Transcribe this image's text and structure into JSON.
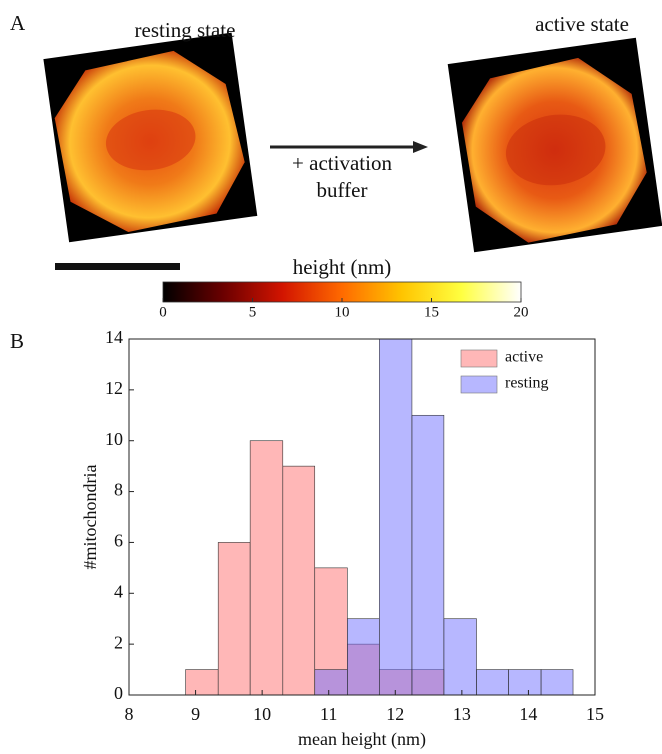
{
  "figure": {
    "panel_labels": [
      "A",
      "B"
    ],
    "image_labels": [
      "resting state",
      "active state"
    ],
    "arrow_label": [
      "+ activation",
      "buffer"
    ]
  },
  "chart_data": [
    {
      "type": "colorbar",
      "title": "height (nm)",
      "xlim": [
        0,
        20
      ],
      "xticks": [
        0,
        5,
        10,
        15,
        20
      ],
      "colors": [
        "#000000",
        "#6a0000",
        "#d21400",
        "#ff6a00",
        "#ffc400",
        "#ffff40",
        "#ffffff"
      ]
    },
    {
      "type": "histogram",
      "xlabel": "mean height (nm)",
      "ylabel": "#mitochondria",
      "bins": [
        8.85,
        9.34,
        9.82,
        10.31,
        10.79,
        11.28,
        11.76,
        12.25,
        12.73,
        13.22,
        13.7,
        14.19,
        14.67
      ],
      "series": [
        {
          "name": "active",
          "color": "#ff7070",
          "values": [
            1,
            6,
            10,
            9,
            5,
            2,
            1,
            1,
            0,
            0,
            0,
            0
          ]
        },
        {
          "name": "resting",
          "color": "#7070ff",
          "values": [
            0,
            0,
            0,
            0,
            1,
            3,
            14,
            11,
            3,
            1,
            1,
            1
          ]
        }
      ],
      "xlim": [
        8,
        15
      ],
      "xticks": [
        8,
        9,
        10,
        11,
        12,
        13,
        14,
        15
      ],
      "ylim": [
        0,
        14
      ],
      "yticks": [
        0,
        2,
        4,
        6,
        8,
        10,
        12,
        14
      ],
      "legend": "upper right"
    }
  ]
}
